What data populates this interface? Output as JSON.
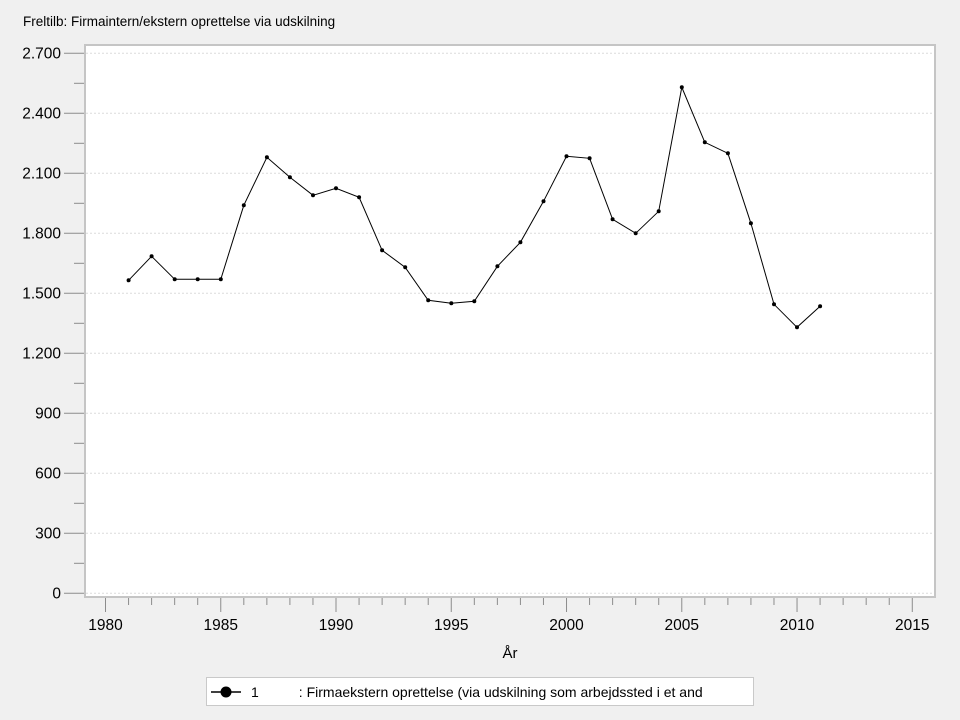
{
  "title": "Freltilb: Firmaintern/ekstern oprettelse via udskilning",
  "colors": {
    "page_background": "#f0f0f0",
    "plot_background": "#ffffff",
    "plot_border": "#c5c5c5",
    "gridline": "#dcdcdc",
    "tick": "#8c8c8c",
    "series_line": "#000000",
    "text": "#000000",
    "legend_background": "#ffffff",
    "legend_border": "#c9c9c9"
  },
  "legend": {
    "series_id": "1",
    "description": ": Firmaekstern oprettelse (via udskilning som arbejdssted i et and"
  },
  "chart_data": {
    "type": "line",
    "title": "Freltilb: Firmaintern/ekstern oprettelse via udskilning",
    "xlabel": "År",
    "ylabel": "",
    "xlim": [
      1979,
      2016
    ],
    "ylim": [
      0,
      2700
    ],
    "grid": "horizontal-major-dotted",
    "legend_position": "bottom-center",
    "x_ticks": [
      1980,
      1985,
      1990,
      1995,
      2000,
      2005,
      2010,
      2015
    ],
    "x_tick_labels": [
      "1980",
      "1985",
      "1990",
      "1995",
      "2000",
      "2005",
      "2010",
      "2015"
    ],
    "x_minor_ticks": [
      1981,
      1982,
      1983,
      1984,
      1986,
      1987,
      1988,
      1989,
      1991,
      1992,
      1993,
      1994,
      1996,
      1997,
      1998,
      1999,
      2001,
      2002,
      2003,
      2004,
      2006,
      2007,
      2008,
      2009,
      2011,
      2012,
      2013,
      2014
    ],
    "y_ticks": [
      0,
      300,
      600,
      900,
      1200,
      1500,
      1800,
      2100,
      2400,
      2700
    ],
    "y_tick_labels": [
      "0",
      "300",
      "600",
      "900",
      "1.200",
      "1.500",
      "1.800",
      "2.100",
      "2.400",
      "2.700"
    ],
    "y_minor_ticks": [
      150,
      450,
      750,
      1050,
      1350,
      1650,
      1950,
      2250,
      2550
    ],
    "series": [
      {
        "name": "1",
        "label": ": Firmaekstern oprettelse (via udskilning som arbejdssted i et and",
        "color": "#000000",
        "marker": "filled-circle",
        "x": [
          1981,
          1982,
          1983,
          1984,
          1985,
          1986,
          1987,
          1988,
          1989,
          1990,
          1991,
          1992,
          1993,
          1994,
          1995,
          1996,
          1997,
          1998,
          1999,
          2000,
          2001,
          2002,
          2003,
          2004,
          2005,
          2006,
          2007,
          2008,
          2009,
          2010,
          2011
        ],
        "values": [
          1565,
          1685,
          1570,
          1570,
          1570,
          1940,
          2180,
          2080,
          1990,
          2025,
          1980,
          1715,
          1630,
          1465,
          1450,
          1460,
          1635,
          1755,
          1960,
          2185,
          2175,
          1870,
          1800,
          1910,
          2530,
          2255,
          2200,
          1850,
          1445,
          1330,
          1435
        ]
      }
    ]
  }
}
